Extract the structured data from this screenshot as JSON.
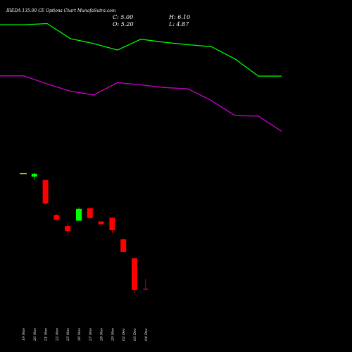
{
  "chart_data": {
    "type": "candlestick",
    "title": "IREDA 135.00 CE Options Chart MunafaSutra.com",
    "ohlc_readout": {
      "close": "C: 5.00",
      "high": "H: 6.10",
      "open": "O: 5.20",
      "low": "L: 4.87"
    },
    "categories": [
      "19 Nov",
      "20 Nov",
      "21 Nov",
      "22 Nov",
      "25 Nov",
      "26 Nov",
      "27 Nov",
      "28 Nov",
      "29 Nov",
      "02 Dec",
      "03 Dec",
      "04 Dec"
    ],
    "candles": [
      {
        "date": "19 Nov",
        "open": 38.9,
        "high": 38.9,
        "low": 38.9,
        "close": 38.9,
        "color": "#ffff00"
      },
      {
        "date": "20 Nov",
        "open": 37.2,
        "high": 39.2,
        "low": 35.5,
        "close": 38.7,
        "color": "#00ff00"
      },
      {
        "date": "21 Nov",
        "open": 35.4,
        "high": 35.4,
        "low": 22.5,
        "close": 23.0,
        "color": "#ff0000"
      },
      {
        "date": "22 Nov",
        "open": 17.0,
        "high": 17.4,
        "low": 14.2,
        "close": 14.5,
        "color": "#ff0000"
      },
      {
        "date": "25 Nov",
        "open": 11.2,
        "high": 13.0,
        "low": 6.2,
        "close": 8.6,
        "color": "#ff0000"
      },
      {
        "date": "26 Nov",
        "open": 14.0,
        "high": 21.0,
        "low": 14.0,
        "close": 20.2,
        "color": "#00ff00"
      },
      {
        "date": "27 Nov",
        "open": 20.6,
        "high": 20.6,
        "low": 15.0,
        "close": 15.4,
        "color": "#ff0000"
      },
      {
        "date": "28 Nov",
        "open": 13.6,
        "high": 13.6,
        "low": 11.7,
        "close": 12.1,
        "color": "#ff0000"
      },
      {
        "date": "29 Nov",
        "open": 15.6,
        "high": 15.6,
        "low": 7.5,
        "close": 9.0,
        "color": "#ff0000"
      },
      {
        "date": "02 Dec",
        "open": 4.3,
        "high": 4.3,
        "low": -2.4,
        "close": -2.4,
        "color": "#ff0000"
      },
      {
        "date": "03 Dec",
        "open": -5.7,
        "high": -5.7,
        "low": -24.0,
        "close": -22.4,
        "color": "#ff0000"
      },
      {
        "date": "04 Dec",
        "open": -21.8,
        "high": -16.5,
        "low": -22.6,
        "close": -22.2,
        "color": "#ff0000"
      }
    ],
    "series": [
      {
        "color": "#00ff00",
        "x": [
          0,
          34,
          67,
          100,
          133,
          167,
          200,
          233,
          267,
          300,
          334,
          367,
          400
        ],
        "values": [
          117.0,
          117.0,
          117.6,
          109.7,
          107.1,
          103.7,
          109.4,
          107.8,
          106.5,
          105.5,
          99.0,
          90.0,
          90.0
        ]
      },
      {
        "color": "#cc00cc",
        "x": [
          0,
          34,
          67,
          100,
          133,
          167,
          200,
          233,
          267,
          300,
          334,
          367,
          400
        ],
        "values": [
          90.1,
          90.1,
          85.9,
          82.1,
          80.1,
          86.6,
          85.4,
          84.0,
          83.3,
          77.2,
          69.2,
          69.0,
          61.0
        ]
      }
    ],
    "xlim": [
      0,
      500
    ],
    "ylim": [
      -55,
      130
    ],
    "grid": false,
    "legend": "none",
    "colors": {
      "background": "#000000",
      "text": "#ffffff"
    }
  }
}
